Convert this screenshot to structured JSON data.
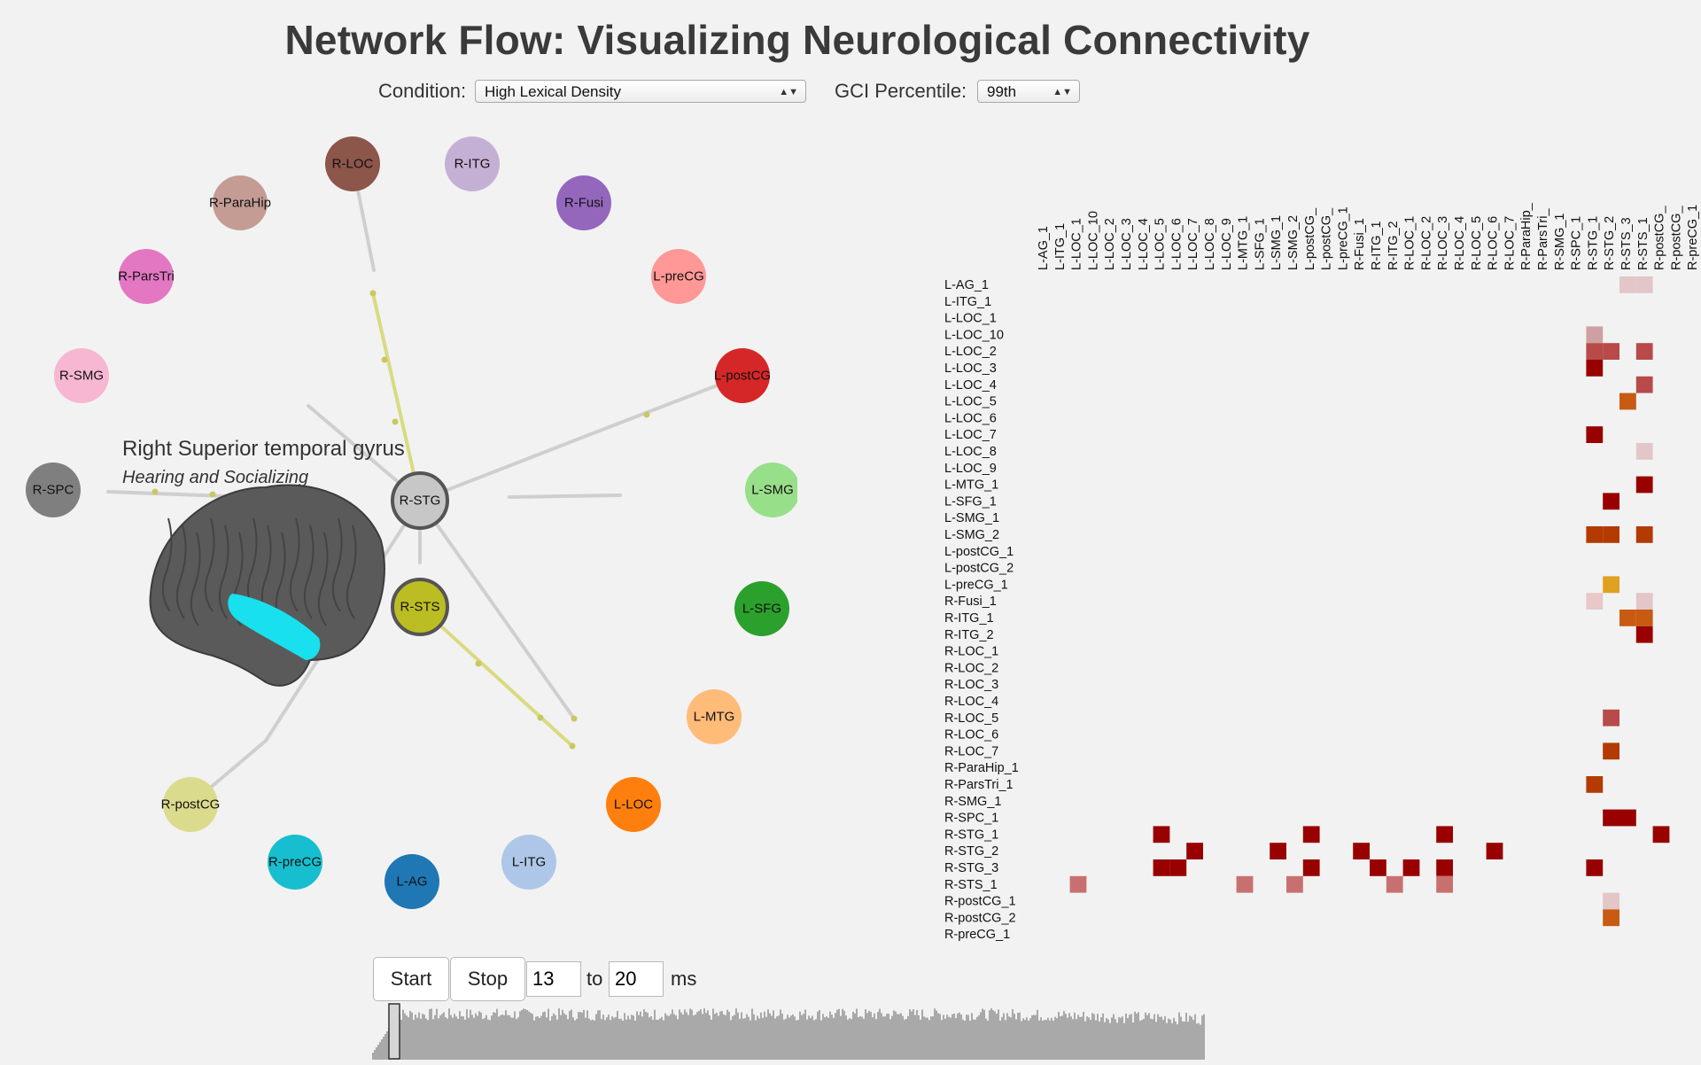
{
  "header": {
    "title": "Network Flow: Visualizing Neurological Connectivity"
  },
  "controls": {
    "condition_label": "Condition:",
    "condition_value": "High Lexical Density",
    "gci_label": "GCI Percentile:",
    "gci_value": "99th"
  },
  "selected_region": {
    "name": "Right Superior temporal gyrus",
    "function": "Hearing and Socializing"
  },
  "network_nodes": [
    {
      "label": "R-LOC",
      "color": "#8c564b"
    },
    {
      "label": "R-ITG",
      "color": "#c5b0d5"
    },
    {
      "label": "R-Fusi",
      "color": "#9467bd"
    },
    {
      "label": "L-preCG",
      "color": "#ff9896"
    },
    {
      "label": "L-postCG",
      "color": "#d62728"
    },
    {
      "label": "L-SMG",
      "color": "#98df8a"
    },
    {
      "label": "L-SFG",
      "color": "#2ca02c"
    },
    {
      "label": "L-MTG",
      "color": "#ffbb78"
    },
    {
      "label": "L-LOC",
      "color": "#ff7f0e"
    },
    {
      "label": "L-ITG",
      "color": "#aec7e8"
    },
    {
      "label": "L-AG",
      "color": "#1f77b4"
    },
    {
      "label": "R-preCG",
      "color": "#17becf"
    },
    {
      "label": "R-postCG",
      "color": "#dbdb8d"
    },
    {
      "label": "R-SPC",
      "color": "#7f7f7f"
    },
    {
      "label": "R-SMG",
      "color": "#f7b6d2"
    },
    {
      "label": "R-ParsTri",
      "color": "#e377c2"
    },
    {
      "label": "R-ParaHip",
      "color": "#c49c94"
    },
    {
      "label": "R-STG",
      "color": "#c7c7c7",
      "highlight": true
    },
    {
      "label": "R-STS",
      "color": "#bcbd22",
      "highlight": true
    }
  ],
  "matrix": {
    "columns": [
      "L-AG_1",
      "L-ITG_1",
      "L-LOC_1",
      "L-LOC_10",
      "L-LOC_2",
      "L-LOC_3",
      "L-LOC_4",
      "L-LOC_5",
      "L-LOC_6",
      "L-LOC_7",
      "L-LOC_8",
      "L-LOC_9",
      "L-MTG_1",
      "L-SFG_1",
      "L-SMG_1",
      "L-SMG_2",
      "L-postCG_",
      "L-postCG_",
      "L-preCG_1",
      "R-Fusi_1",
      "R-ITG_1",
      "R-ITG_2",
      "R-LOC_1",
      "R-LOC_2",
      "R-LOC_3",
      "R-LOC_4",
      "R-LOC_5",
      "R-LOC_6",
      "R-LOC_7",
      "R-ParaHip_",
      "R-ParsTri_",
      "R-SMG_1",
      "R-SPC_1",
      "R-STG_1",
      "R-STG_2",
      "R-STS_3",
      "R-STS_1",
      "R-postCG_",
      "R-postCG_",
      "R-preCG_1"
    ],
    "rows": [
      "L-AG_1",
      "L-ITG_1",
      "L-LOC_1",
      "L-LOC_10",
      "L-LOC_2",
      "L-LOC_3",
      "L-LOC_4",
      "L-LOC_5",
      "L-LOC_6",
      "L-LOC_7",
      "L-LOC_8",
      "L-LOC_9",
      "L-MTG_1",
      "L-SFG_1",
      "L-SMG_1",
      "L-SMG_2",
      "L-postCG_1",
      "L-postCG_2",
      "L-preCG_1",
      "R-Fusi_1",
      "R-ITG_1",
      "R-ITG_2",
      "R-LOC_1",
      "R-LOC_2",
      "R-LOC_3",
      "R-LOC_4",
      "R-LOC_5",
      "R-LOC_6",
      "R-LOC_7",
      "R-ParaHip_1",
      "R-ParsTri_1",
      "R-SMG_1",
      "R-SPC_1",
      "R-STG_1",
      "R-STG_2",
      "R-STG_3",
      "R-STS_1",
      "R-postCG_1",
      "R-postCG_2",
      "R-preCG_1"
    ],
    "cells": [
      [
        0,
        35,
        "#e2c6c8"
      ],
      [
        0,
        36,
        "#e2c6c8"
      ],
      [
        3,
        33,
        "#cfa0a2"
      ],
      [
        4,
        33,
        "#b84a4a"
      ],
      [
        4,
        34,
        "#b84a4a"
      ],
      [
        4,
        36,
        "#b84a4a"
      ],
      [
        5,
        33,
        "#990000"
      ],
      [
        6,
        36,
        "#b84a4a"
      ],
      [
        7,
        35,
        "#c85a12"
      ],
      [
        9,
        33,
        "#990000"
      ],
      [
        10,
        36,
        "#e2c6c8"
      ],
      [
        12,
        36,
        "#990000"
      ],
      [
        13,
        34,
        "#990000"
      ],
      [
        15,
        33,
        "#b33a00"
      ],
      [
        15,
        34,
        "#b33a00"
      ],
      [
        15,
        36,
        "#b33a00"
      ],
      [
        18,
        34,
        "#e0a020"
      ],
      [
        19,
        33,
        "#e8c8c8"
      ],
      [
        19,
        36,
        "#e2c6c8"
      ],
      [
        20,
        35,
        "#c85a12"
      ],
      [
        20,
        36,
        "#c85a12"
      ],
      [
        21,
        36,
        "#990000"
      ],
      [
        26,
        34,
        "#b84a4a"
      ],
      [
        28,
        34,
        "#b33a00"
      ],
      [
        30,
        33,
        "#b33a00"
      ],
      [
        32,
        34,
        "#990000"
      ],
      [
        32,
        35,
        "#990000"
      ],
      [
        33,
        7,
        "#990000"
      ],
      [
        33,
        16,
        "#990000"
      ],
      [
        33,
        24,
        "#990000"
      ],
      [
        33,
        37,
        "#990000"
      ],
      [
        34,
        9,
        "#990000"
      ],
      [
        34,
        14,
        "#990000"
      ],
      [
        34,
        19,
        "#990000"
      ],
      [
        34,
        27,
        "#990000"
      ],
      [
        35,
        7,
        "#990000"
      ],
      [
        35,
        8,
        "#990000"
      ],
      [
        35,
        16,
        "#990000"
      ],
      [
        35,
        20,
        "#990000"
      ],
      [
        35,
        22,
        "#990000"
      ],
      [
        35,
        24,
        "#990000"
      ],
      [
        35,
        33,
        "#990000"
      ],
      [
        36,
        2,
        "#c87070"
      ],
      [
        36,
        12,
        "#c87070"
      ],
      [
        36,
        15,
        "#c87070"
      ],
      [
        36,
        21,
        "#c87070"
      ],
      [
        36,
        24,
        "#c87070"
      ],
      [
        37,
        34,
        "#e2c6c8"
      ],
      [
        38,
        34,
        "#c85a12"
      ]
    ]
  },
  "playback": {
    "start_label": "Start",
    "stop_label": "Stop",
    "from_value": "13",
    "to_label": "to",
    "to_value": "20",
    "unit_label": "ms"
  }
}
